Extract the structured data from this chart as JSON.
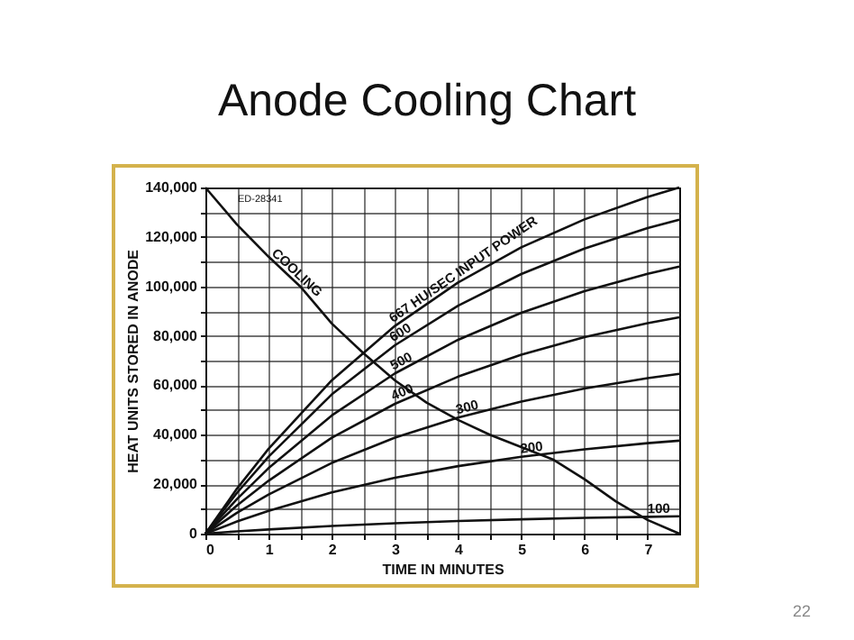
{
  "chart_data": {
    "type": "line",
    "title": "Anode Cooling Chart",
    "xlabel": "TIME IN MINUTES",
    "ylabel": "HEAT UNITS STORED IN ANODE",
    "annotations": [
      "ED-28341",
      "22"
    ],
    "x": [
      0,
      0.5,
      1,
      2,
      3,
      4,
      5,
      6,
      7,
      7.5
    ],
    "series": [
      {
        "name": "COOLING",
        "color": "#111111",
        "x": [
          0,
          0.5,
          1,
          1.5,
          2,
          2.5,
          3,
          3.5,
          4,
          4.5,
          5,
          5.5,
          6,
          6.5,
          7,
          7.5
        ],
        "values": [
          140000,
          125000,
          112000,
          100000,
          85000,
          73000,
          62000,
          53000,
          46000,
          40000,
          35000,
          30000,
          22000,
          13000,
          5500,
          0
        ]
      },
      {
        "name": "667 HU/SEC INPUT POWER",
        "color": "#111111",
        "values": [
          0,
          18200,
          34300,
          62000,
          84000,
          101600,
          115800,
          127100,
          136200,
          140000
        ]
      },
      {
        "name": "600",
        "color": "#111111",
        "values": [
          0,
          16500,
          31100,
          56300,
          76200,
          92200,
          105000,
          115300,
          123600,
          127000
        ]
      },
      {
        "name": "500",
        "color": "#111111",
        "values": [
          0,
          14000,
          26500,
          47800,
          64800,
          78400,
          89300,
          98100,
          105100,
          108000
        ]
      },
      {
        "name": "400",
        "color": "#111111",
        "values": [
          0,
          11400,
          21400,
          38800,
          52500,
          63500,
          72400,
          79500,
          85100,
          87500
        ]
      },
      {
        "name": "300",
        "color": "#111111",
        "values": [
          0,
          8400,
          15800,
          28600,
          38800,
          46900,
          53400,
          58700,
          62900,
          64600
        ]
      },
      {
        "name": "200",
        "color": "#111111",
        "values": [
          0,
          4900,
          9200,
          16700,
          22600,
          27300,
          31100,
          34100,
          36600,
          37600
        ]
      },
      {
        "name": "100",
        "color": "#111111",
        "values": [
          0,
          900,
          1700,
          3100,
          4200,
          5100,
          5800,
          6400,
          6800,
          7000
        ]
      }
    ],
    "xlim": [
      0,
      7.5
    ],
    "xticks": [
      0,
      {
        "value": 0.5,
        "label": null
      },
      1,
      {
        "value": 1.5,
        "label": null
      },
      2,
      {
        "value": 2.5,
        "label": null
      },
      3,
      {
        "value": 3.5,
        "label": null
      },
      4,
      {
        "value": 4.5,
        "label": null
      },
      5,
      {
        "value": 5.5,
        "label": null
      },
      6,
      {
        "value": 6.5,
        "label": null
      },
      7
    ],
    "ylim": [
      0,
      140000
    ],
    "yticks": [
      0,
      {
        "value": 10000,
        "label": null
      },
      {
        "value": 20000,
        "label": "20,000"
      },
      {
        "value": 30000,
        "label": null
      },
      {
        "value": 40000,
        "label": "40,000"
      },
      {
        "value": 50000,
        "label": null
      },
      {
        "value": 60000,
        "label": "60,000"
      },
      {
        "value": 70000,
        "label": null
      },
      {
        "value": 80000,
        "label": "80,000"
      },
      {
        "value": 90000,
        "label": null
      },
      {
        "value": 100000,
        "label": "100,000"
      },
      {
        "value": 110000,
        "label": null
      },
      {
        "value": 120000,
        "label": "120,000"
      },
      {
        "value": 130000,
        "label": null
      },
      {
        "value": 140000,
        "label": "140,000"
      }
    ],
    "grid": true,
    "marker": "none",
    "line_style": "solid"
  }
}
